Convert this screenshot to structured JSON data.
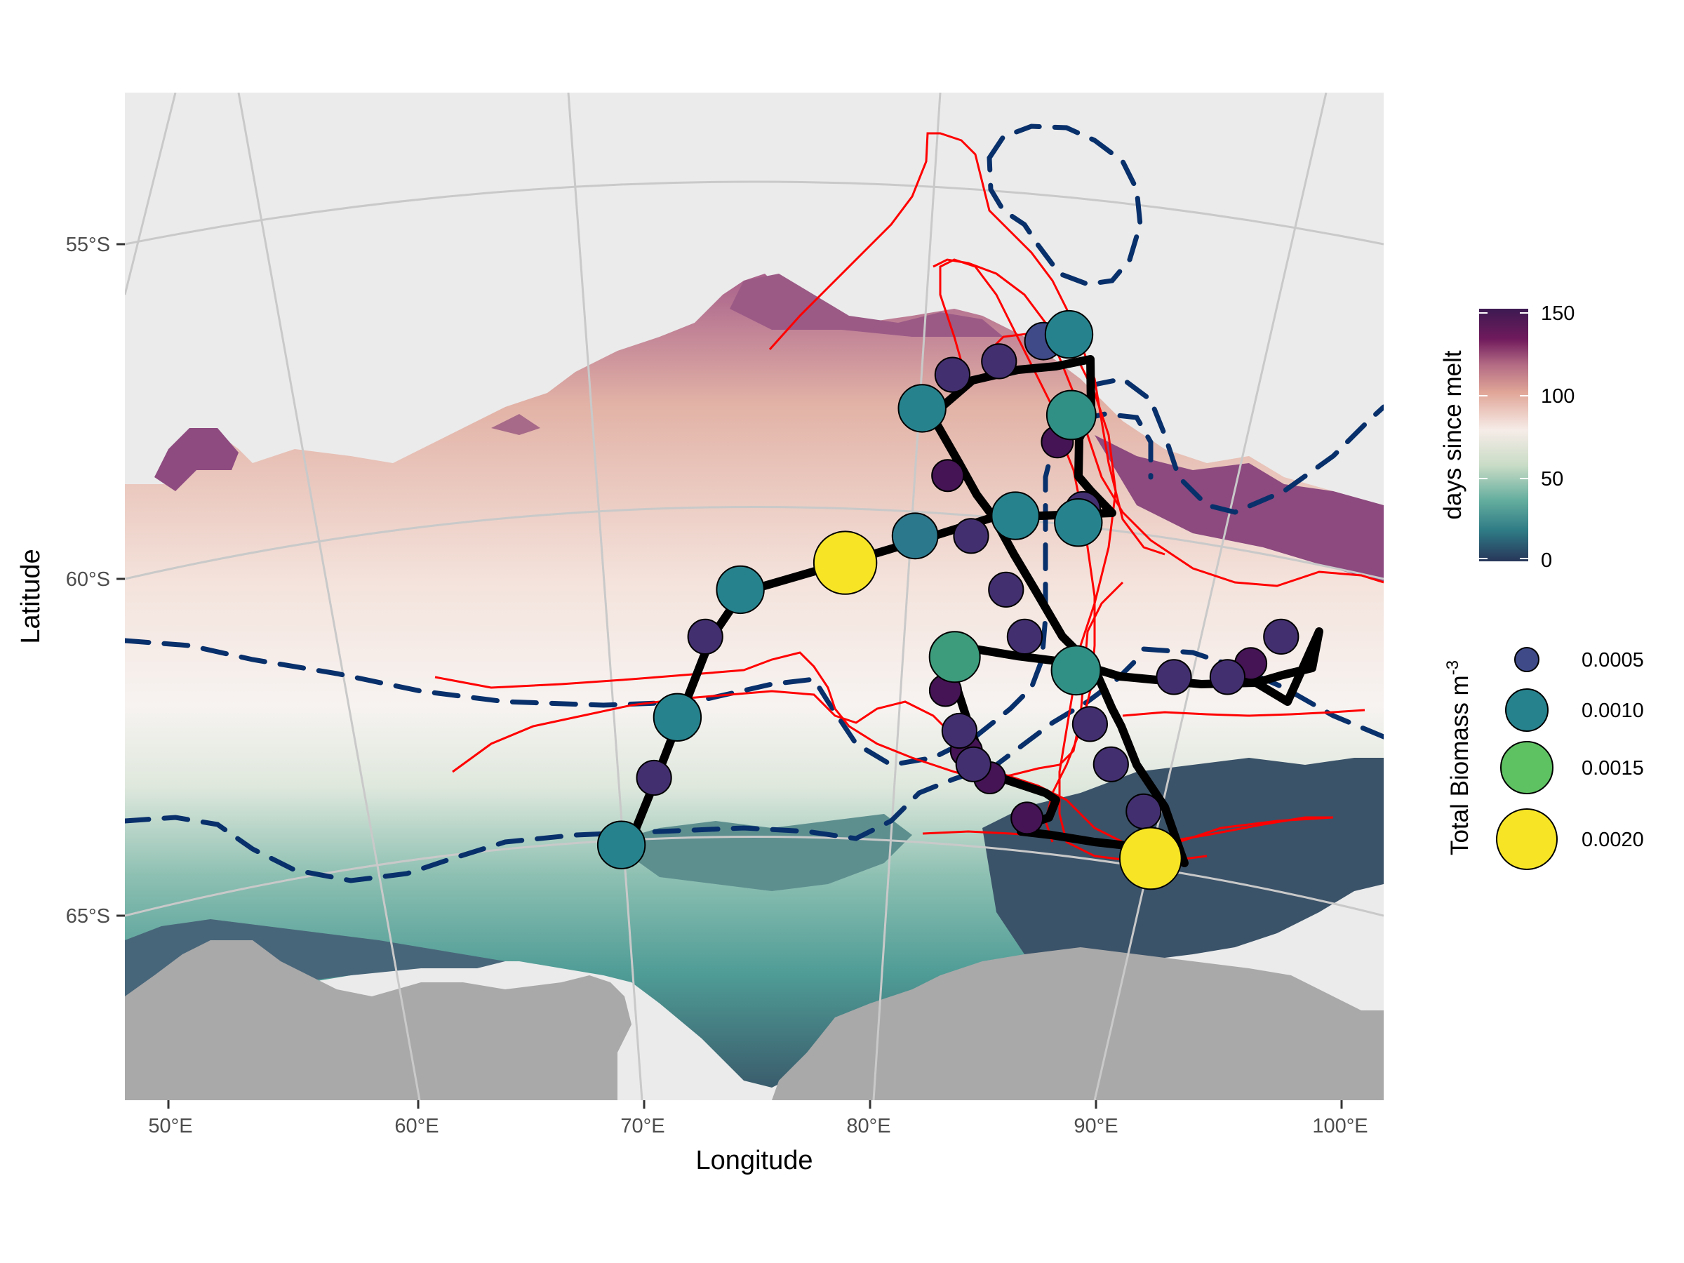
{
  "axes": {
    "x_title": "Longitude",
    "y_title": "Latitude",
    "x_ticks": [
      "50°E",
      "60°E",
      "70°E",
      "80°E",
      "90°E",
      "100°E"
    ],
    "y_ticks": [
      "55°S",
      "60°S",
      "65°S"
    ]
  },
  "legend_color": {
    "title": "days since melt",
    "ticks": [
      "150",
      "100",
      "50",
      "0"
    ],
    "palette": [
      "#3d1a52",
      "#701a5c",
      "#b26a83",
      "#e0a597",
      "#f6ece8",
      "#c9dcc6",
      "#63ad9e",
      "#2e7a85",
      "#28365a"
    ]
  },
  "legend_size": {
    "title_main": "Total Biomass m",
    "title_sup": "-3",
    "items": [
      {
        "label": "0.0005",
        "color": "#3f4a89"
      },
      {
        "label": "0.0010",
        "color": "#26838e"
      },
      {
        "label": "0.0015",
        "color": "#5ec262"
      },
      {
        "label": "0.0020",
        "color": "#f7e525"
      }
    ]
  },
  "colors": {
    "panel_background": "#ebebeb",
    "land": "#a9a9a9",
    "front_lines": "#ff0000",
    "dashed_contours": "#08306b",
    "ship_track": "#000000",
    "graticule": "#c9c9c9"
  },
  "chart_data": {
    "type": "scatter",
    "ylabel": "Latitude",
    "xlabel": "Longitude",
    "xlim": [
      48,
      102
    ],
    "ylim": [
      -67.8,
      -52.8
    ],
    "color_scale": {
      "variable": "days since melt",
      "range": [
        0,
        150
      ]
    },
    "size_scale": {
      "variable": "Total Biomass m-3",
      "breaks": [
        0.0005,
        0.001,
        0.0015,
        0.002
      ]
    },
    "stations": [
      {
        "lon": 69.3,
        "lat": -64.0,
        "biomass": 0.001
      },
      {
        "lon": 70.7,
        "lat": -63.0,
        "biomass": 0.0004
      },
      {
        "lon": 71.7,
        "lat": -62.1,
        "biomass": 0.001
      },
      {
        "lon": 72.9,
        "lat": -60.9,
        "biomass": 0.0004
      },
      {
        "lon": 74.4,
        "lat": -60.2,
        "biomass": 0.001
      },
      {
        "lon": 78.9,
        "lat": -59.8,
        "biomass": 0.0021
      },
      {
        "lon": 81.9,
        "lat": -59.4,
        "biomass": 0.0009
      },
      {
        "lon": 82.2,
        "lat": -57.5,
        "biomass": 0.001
      },
      {
        "lon": 83.5,
        "lat": -57.0,
        "biomass": 0.0004
      },
      {
        "lon": 85.5,
        "lat": -56.8,
        "biomass": 0.0004
      },
      {
        "lon": 87.4,
        "lat": -56.5,
        "biomass": 0.0005
      },
      {
        "lon": 88.5,
        "lat": -56.4,
        "biomass": 0.001
      },
      {
        "lon": 88.6,
        "lat": -57.6,
        "biomass": 0.0011
      },
      {
        "lon": 88.0,
        "lat": -58.0,
        "biomass": 0.0003
      },
      {
        "lon": 89.1,
        "lat": -59.0,
        "biomass": 0.0004
      },
      {
        "lon": 88.9,
        "lat": -59.2,
        "biomass": 0.001
      },
      {
        "lon": 86.2,
        "lat": -59.1,
        "biomass": 0.001
      },
      {
        "lon": 84.3,
        "lat": -59.4,
        "biomass": 0.0004
      },
      {
        "lon": 83.3,
        "lat": -58.5,
        "biomass": 0.0003
      },
      {
        "lon": 85.8,
        "lat": -60.2,
        "biomass": 0.0004
      },
      {
        "lon": 86.6,
        "lat": -60.9,
        "biomass": 0.0004
      },
      {
        "lon": 83.6,
        "lat": -61.2,
        "biomass": 0.0012
      },
      {
        "lon": 83.2,
        "lat": -61.7,
        "biomass": 0.0003
      },
      {
        "lon": 83.8,
        "lat": -62.3,
        "biomass": 0.0004
      },
      {
        "lon": 84.1,
        "lat": -62.6,
        "biomass": 0.0003
      },
      {
        "lon": 84.4,
        "lat": -62.8,
        "biomass": 0.0004
      },
      {
        "lon": 85.1,
        "lat": -63.0,
        "biomass": 0.0003
      },
      {
        "lon": 86.7,
        "lat": -63.6,
        "biomass": 0.0003
      },
      {
        "lon": 88.8,
        "lat": -61.4,
        "biomass": 0.0011
      },
      {
        "lon": 89.4,
        "lat": -62.2,
        "biomass": 0.0004
      },
      {
        "lon": 90.3,
        "lat": -62.8,
        "biomass": 0.0004
      },
      {
        "lon": 91.7,
        "lat": -63.5,
        "biomass": 0.0004
      },
      {
        "lon": 92.0,
        "lat": -64.2,
        "biomass": 0.002
      },
      {
        "lon": 93.0,
        "lat": -61.5,
        "biomass": 0.0004
      },
      {
        "lon": 95.3,
        "lat": -61.5,
        "biomass": 0.0004
      },
      {
        "lon": 96.3,
        "lat": -61.3,
        "biomass": 0.0003
      },
      {
        "lon": 97.6,
        "lat": -60.9,
        "biomass": 0.0004
      }
    ]
  }
}
